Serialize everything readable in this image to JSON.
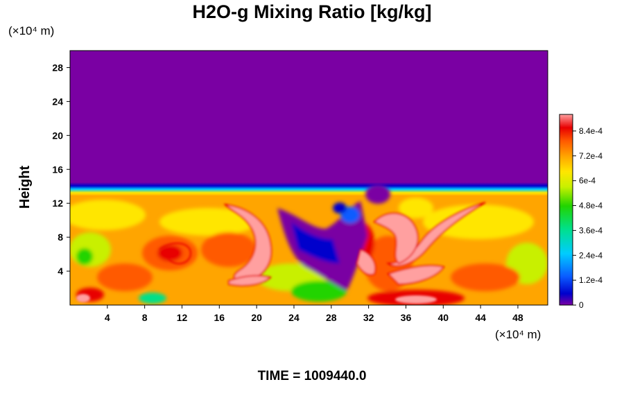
{
  "title": "H2O-g Mixing Ratio [kg/kg]",
  "time_text": "TIME = 1009440.0",
  "chart_data": {
    "type": "heatmap",
    "title": "H2O-g Mixing Ratio [kg/kg]",
    "ylabel": "Height",
    "xlabel": "",
    "x_unit": "(×10⁴ m)",
    "y_unit": "(×10⁴ m)",
    "x_ticks": [
      4,
      8,
      12,
      16,
      20,
      24,
      28,
      32,
      36,
      40,
      44,
      48
    ],
    "y_ticks": [
      4,
      8,
      12,
      16,
      20,
      24,
      28
    ],
    "xlim": [
      0,
      51.2
    ],
    "ylim": [
      0,
      30
    ],
    "colorbar": {
      "min": 0,
      "max": 0.00092,
      "tick_values": [
        0,
        0.00012,
        0.00024,
        0.00036,
        0.00048,
        0.0006,
        0.00072,
        0.00084
      ],
      "tick_labels": [
        "0",
        "1.2e-4",
        "2.4e-4",
        "3.6e-4",
        "4.8e-4",
        "6e-4",
        "7.2e-4",
        "8.4e-4"
      ],
      "colors": [
        "#7a00a3",
        "#0000cc",
        "#0a5cff",
        "#00ccff",
        "#00e08a",
        "#22d400",
        "#c8f000",
        "#ffe600",
        "#ffa500",
        "#ff5a00",
        "#e80000",
        "#ffa0a0"
      ]
    },
    "field_description_levels": {
      "upper_layer_above_height_13": 0,
      "moist_layer_0_to_12": "mostly 6e-4 to 8e-4 with plumes above 8.4e-4"
    }
  }
}
